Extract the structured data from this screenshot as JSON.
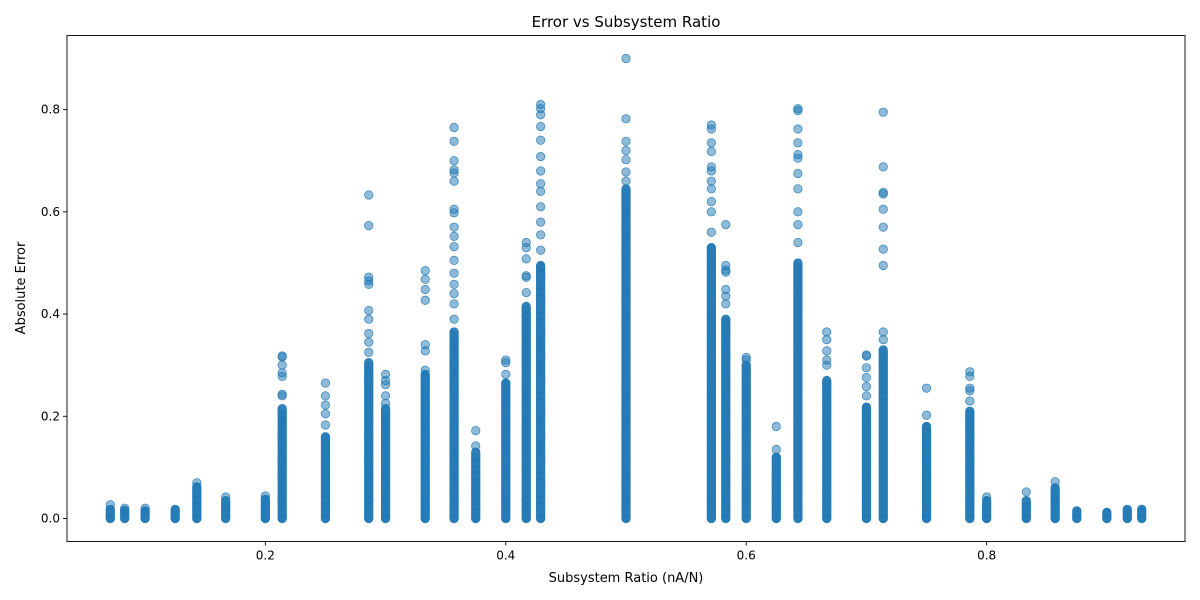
{
  "chart_data": {
    "type": "scatter",
    "title": "Error vs Subsystem Ratio",
    "xlabel": "Subsystem Ratio (nA/N)",
    "ylabel": "Absolute Error",
    "xlim": [
      0.035,
      0.965
    ],
    "ylim": [
      -0.045,
      0.945
    ],
    "xticks": [
      0.2,
      0.4,
      0.6,
      0.8
    ],
    "xtick_labels": [
      "0.2",
      "0.4",
      "0.6",
      "0.8"
    ],
    "yticks": [
      0.0,
      0.2,
      0.4,
      0.6,
      0.8
    ],
    "ytick_labels": [
      "0.0",
      "0.2",
      "0.4",
      "0.6",
      "0.8"
    ],
    "grid": false,
    "marker_color": "#1f77b4",
    "marker_alpha": 0.5,
    "series": [
      {
        "columns": [
          {
            "x": 0.071,
            "dense_max": 0.018,
            "outliers": [
              0.027
            ]
          },
          {
            "x": 0.083,
            "dense_max": 0.016,
            "outliers": [
              0.02
            ]
          },
          {
            "x": 0.1,
            "dense_max": 0.015,
            "outliers": [
              0.02
            ]
          },
          {
            "x": 0.125,
            "dense_max": 0.018,
            "outliers": []
          },
          {
            "x": 0.143,
            "dense_max": 0.062,
            "outliers": [
              0.07
            ]
          },
          {
            "x": 0.167,
            "dense_max": 0.035,
            "outliers": [
              0.042
            ]
          },
          {
            "x": 0.2,
            "dense_max": 0.038,
            "outliers": [
              0.044
            ]
          },
          {
            "x": 0.214,
            "dense_max": 0.215,
            "outliers": [
              0.24,
              0.243,
              0.278,
              0.285,
              0.3,
              0.316,
              0.318
            ]
          },
          {
            "x": 0.25,
            "dense_max": 0.16,
            "outliers": [
              0.183,
              0.205,
              0.222,
              0.24,
              0.265
            ]
          },
          {
            "x": 0.286,
            "dense_max": 0.305,
            "outliers": [
              0.325,
              0.345,
              0.362,
              0.39,
              0.407,
              0.458,
              0.465,
              0.472,
              0.573,
              0.633
            ]
          },
          {
            "x": 0.3,
            "dense_max": 0.215,
            "outliers": [
              0.225,
              0.24,
              0.262,
              0.27,
              0.282
            ]
          },
          {
            "x": 0.333,
            "dense_max": 0.282,
            "outliers": [
              0.29,
              0.328,
              0.34,
              0.427,
              0.448,
              0.468,
              0.485
            ]
          },
          {
            "x": 0.357,
            "dense_max": 0.365,
            "outliers": [
              0.39,
              0.42,
              0.44,
              0.458,
              0.48,
              0.505,
              0.532,
              0.552,
              0.57,
              0.598,
              0.605,
              0.66,
              0.676,
              0.682,
              0.7,
              0.738,
              0.765
            ]
          },
          {
            "x": 0.375,
            "dense_max": 0.13,
            "outliers": [
              0.142,
              0.172
            ]
          },
          {
            "x": 0.4,
            "dense_max": 0.265,
            "outliers": [
              0.282,
              0.305,
              0.31
            ]
          },
          {
            "x": 0.417,
            "dense_max": 0.415,
            "outliers": [
              0.442,
              0.472,
              0.475,
              0.508,
              0.53,
              0.54
            ]
          },
          {
            "x": 0.429,
            "dense_max": 0.495,
            "outliers": [
              0.525,
              0.555,
              0.58,
              0.61,
              0.64,
              0.655,
              0.68,
              0.708,
              0.74,
              0.767,
              0.79,
              0.802,
              0.81
            ]
          },
          {
            "x": 0.5,
            "dense_max": 0.645,
            "outliers": [
              0.66,
              0.678,
              0.702,
              0.72,
              0.738,
              0.782,
              0.9
            ]
          },
          {
            "x": 0.571,
            "dense_max": 0.53,
            "outliers": [
              0.56,
              0.6,
              0.62,
              0.645,
              0.66,
              0.68,
              0.688,
              0.718,
              0.735,
              0.762,
              0.77
            ]
          },
          {
            "x": 0.583,
            "dense_max": 0.39,
            "outliers": [
              0.42,
              0.435,
              0.448,
              0.482,
              0.486,
              0.495,
              0.575
            ]
          },
          {
            "x": 0.6,
            "dense_max": 0.3,
            "outliers": [
              0.31,
              0.315
            ]
          },
          {
            "x": 0.625,
            "dense_max": 0.12,
            "outliers": [
              0.135,
              0.18
            ]
          },
          {
            "x": 0.643,
            "dense_max": 0.5,
            "outliers": [
              0.54,
              0.575,
              0.6,
              0.645,
              0.675,
              0.705,
              0.712,
              0.735,
              0.762,
              0.798,
              0.802
            ]
          },
          {
            "x": 0.667,
            "dense_max": 0.27,
            "outliers": [
              0.3,
              0.31,
              0.328,
              0.35,
              0.365
            ]
          },
          {
            "x": 0.7,
            "dense_max": 0.218,
            "outliers": [
              0.24,
              0.258,
              0.276,
              0.295,
              0.318,
              0.32
            ]
          },
          {
            "x": 0.714,
            "dense_max": 0.33,
            "outliers": [
              0.35,
              0.365,
              0.495,
              0.527,
              0.57,
              0.605,
              0.635,
              0.638,
              0.688,
              0.795
            ]
          },
          {
            "x": 0.75,
            "dense_max": 0.18,
            "outliers": [
              0.202,
              0.255
            ]
          },
          {
            "x": 0.786,
            "dense_max": 0.21,
            "outliers": [
              0.23,
              0.25,
              0.255,
              0.278,
              0.287
            ]
          },
          {
            "x": 0.8,
            "dense_max": 0.035,
            "outliers": [
              0.042
            ]
          },
          {
            "x": 0.833,
            "dense_max": 0.035,
            "outliers": [
              0.052
            ]
          },
          {
            "x": 0.857,
            "dense_max": 0.06,
            "outliers": [
              0.072
            ]
          },
          {
            "x": 0.875,
            "dense_max": 0.015,
            "outliers": []
          },
          {
            "x": 0.9,
            "dense_max": 0.012,
            "outliers": []
          },
          {
            "x": 0.917,
            "dense_max": 0.018,
            "outliers": []
          },
          {
            "x": 0.929,
            "dense_max": 0.018,
            "outliers": []
          }
        ]
      }
    ]
  }
}
